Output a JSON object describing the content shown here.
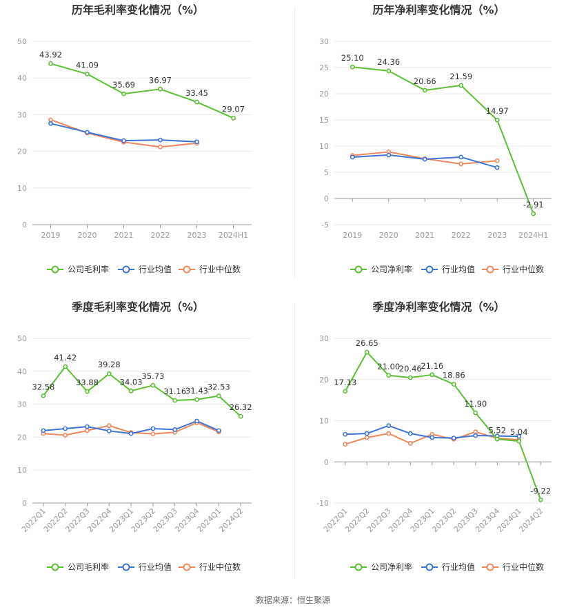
{
  "source": "数据来源：恒生聚源",
  "colors": {
    "company": "#5ac032",
    "avg": "#3d72d9",
    "median": "#f0865b"
  },
  "chart_data": [
    {
      "type": "line",
      "title": "历年毛利率变化情况（%）",
      "categories": [
        "2019",
        "2020",
        "2021",
        "2022",
        "2023",
        "2024H1"
      ],
      "ylim": [
        0,
        50
      ],
      "yticks": [
        0,
        10,
        20,
        30,
        40,
        50
      ],
      "series": [
        {
          "name": "公司毛利率",
          "values": [
            43.92,
            41.09,
            35.69,
            36.97,
            33.45,
            29.07
          ],
          "labels": [
            "43.92",
            "41.09",
            "35.69",
            "36.97",
            "33.45",
            "29.07"
          ]
        },
        {
          "name": "行业均值",
          "values": [
            27.6,
            25.2,
            22.9,
            23.1,
            22.6,
            null
          ]
        },
        {
          "name": "行业中位数",
          "values": [
            28.6,
            25.0,
            22.5,
            21.2,
            22.2,
            null
          ]
        }
      ],
      "legend_position": "bottom",
      "grid": true
    },
    {
      "type": "line",
      "title": "历年净利率变化情况（%）",
      "categories": [
        "2019",
        "2020",
        "2021",
        "2022",
        "2023",
        "2024H1"
      ],
      "ylim": [
        -5,
        30
      ],
      "yticks": [
        -5,
        0,
        5,
        10,
        15,
        20,
        25,
        30
      ],
      "series": [
        {
          "name": "公司净利率",
          "values": [
            25.1,
            24.36,
            20.66,
            21.59,
            14.97,
            -2.91
          ],
          "labels": [
            "25.10",
            "24.36",
            "20.66",
            "21.59",
            "14.97",
            "-2.91"
          ]
        },
        {
          "name": "行业均值",
          "values": [
            7.9,
            8.3,
            7.5,
            7.9,
            5.9,
            null
          ]
        },
        {
          "name": "行业中位数",
          "values": [
            8.2,
            8.9,
            7.6,
            6.6,
            7.2,
            null
          ]
        }
      ],
      "legend_position": "bottom",
      "grid": true
    },
    {
      "type": "line",
      "title": "季度毛利率变化情况（%）",
      "categories": [
        "2022Q1",
        "2022Q2",
        "2022Q3",
        "2022Q4",
        "2023Q1",
        "2023Q2",
        "2023Q3",
        "2023Q4",
        "2024Q1",
        "2024Q2"
      ],
      "ylim": [
        0,
        50
      ],
      "yticks": [
        0,
        10,
        20,
        30,
        40,
        50
      ],
      "series": [
        {
          "name": "公司毛利率",
          "values": [
            32.58,
            41.42,
            33.88,
            39.28,
            34.03,
            35.73,
            31.16,
            31.43,
            32.53,
            26.32
          ],
          "labels": [
            "32.58",
            "41.42",
            "33.88",
            "39.28",
            "34.03",
            "35.73",
            "31.16",
            "31.43",
            "32.53",
            "26.32"
          ]
        },
        {
          "name": "行业均值",
          "values": [
            22.0,
            22.6,
            23.2,
            21.9,
            21.1,
            22.6,
            22.3,
            24.9,
            22.0,
            null
          ]
        },
        {
          "name": "行业中位数",
          "values": [
            21.1,
            20.6,
            22.0,
            23.5,
            21.4,
            21.0,
            21.5,
            24.4,
            21.6,
            null
          ]
        }
      ],
      "legend_position": "bottom",
      "grid": true
    },
    {
      "type": "line",
      "title": "季度净利率变化情况（%）",
      "categories": [
        "2022Q1",
        "2022Q2",
        "2022Q3",
        "2022Q4",
        "2023Q1",
        "2023Q2",
        "2023Q3",
        "2023Q4",
        "2024Q1",
        "2024Q2"
      ],
      "ylim": [
        -10,
        30
      ],
      "yticks": [
        -10,
        0,
        10,
        20,
        30
      ],
      "series": [
        {
          "name": "公司净利率",
          "values": [
            17.13,
            26.65,
            21.0,
            20.46,
            21.16,
            18.86,
            11.9,
            5.52,
            5.04,
            -9.22
          ],
          "labels": [
            "17.13",
            "26.65",
            "21.00",
            "20.46",
            "21.16",
            "18.86",
            "11.90",
            "5.52",
            "5.04",
            "-9.22"
          ]
        },
        {
          "name": "行业均值",
          "values": [
            6.7,
            6.9,
            8.8,
            6.9,
            5.9,
            5.8,
            6.4,
            6.3,
            6.2,
            null
          ]
        },
        {
          "name": "行业中位数",
          "values": [
            4.3,
            5.9,
            6.9,
            4.5,
            6.7,
            5.5,
            7.3,
            5.7,
            5.4,
            null
          ]
        }
      ],
      "legend_position": "bottom",
      "grid": true
    }
  ]
}
